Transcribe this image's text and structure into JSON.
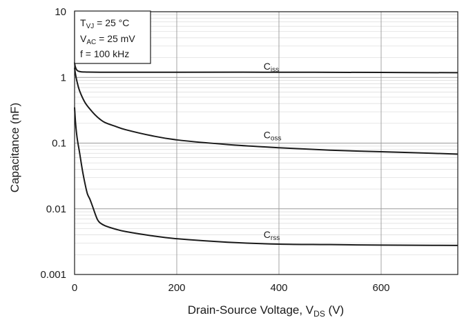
{
  "chart_data": {
    "type": "line",
    "yscale": "log",
    "xlim": [
      0,
      750
    ],
    "ylim": [
      0.001,
      10
    ],
    "xticks": [
      "0",
      "200",
      "400",
      "600"
    ],
    "xtick_values": [
      0,
      200,
      400,
      600
    ],
    "yticks": [
      "10",
      "1",
      "0.1",
      "0.01",
      "0.001"
    ],
    "ytick_values": [
      10,
      1,
      0.1,
      0.01,
      0.001
    ],
    "ylabel": "Capacitance (nF)",
    "xlabel": {
      "main": "Drain-Source Voltage, V",
      "sub": "DS",
      "unit": " (V)"
    },
    "grid": true,
    "conditions": [
      {
        "main": "T",
        "sub": "VJ",
        "rest": " = 25 °C"
      },
      {
        "main": "V",
        "sub": "AC",
        "rest": " = 25 mV"
      },
      {
        "main": "f = 100 kHz",
        "sub": "",
        "rest": ""
      }
    ],
    "series": [
      {
        "name": "C",
        "name_sub": "iss",
        "label_at": [
          370,
          1.32
        ],
        "x": [
          0,
          1,
          3,
          5,
          8,
          12,
          20,
          50,
          100,
          200,
          400,
          600,
          750
        ],
        "y": [
          1.7,
          1.5,
          1.35,
          1.28,
          1.24,
          1.22,
          1.21,
          1.2,
          1.2,
          1.2,
          1.2,
          1.19,
          1.18
        ]
      },
      {
        "name": "C",
        "name_sub": "oss",
        "label_at": [
          370,
          0.118
        ],
        "x": [
          0,
          2,
          5,
          10,
          20,
          30,
          40,
          50,
          60,
          80,
          100,
          150,
          200,
          300,
          400,
          500,
          600,
          700,
          750
        ],
        "y": [
          1.4,
          1.1,
          0.85,
          0.62,
          0.42,
          0.33,
          0.27,
          0.23,
          0.205,
          0.18,
          0.16,
          0.13,
          0.112,
          0.095,
          0.085,
          0.078,
          0.074,
          0.07,
          0.068
        ]
      },
      {
        "name": "C",
        "name_sub": "rss",
        "label_at": [
          370,
          0.0036
        ],
        "x": [
          0,
          2,
          5,
          10,
          15,
          20,
          25,
          30,
          35,
          40,
          45,
          50,
          60,
          80,
          100,
          150,
          200,
          300,
          400,
          500,
          600,
          700,
          750
        ],
        "y": [
          0.35,
          0.2,
          0.12,
          0.07,
          0.04,
          0.025,
          0.017,
          0.014,
          0.011,
          0.0085,
          0.0068,
          0.0061,
          0.0055,
          0.0049,
          0.0045,
          0.0039,
          0.0035,
          0.0031,
          0.0029,
          0.00285,
          0.0028,
          0.00278,
          0.00277
        ]
      }
    ]
  }
}
